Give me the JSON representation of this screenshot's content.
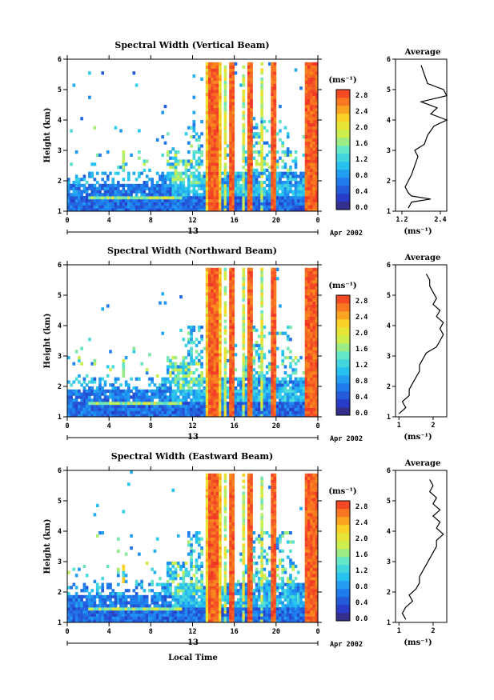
{
  "common": {
    "local_time_label": "Local Time",
    "date_label": "Apr 2002",
    "day_label": "13",
    "average_title": "Average",
    "height_label": "Height (km)",
    "unit_label": "(ms⁻¹)",
    "x_ticks": [
      "0",
      "4",
      "8",
      "12",
      "16",
      "20",
      "0"
    ],
    "y_ticks": [
      "1",
      "2",
      "3",
      "4",
      "5",
      "6"
    ],
    "colorbar_ticks": [
      "0.0",
      "0.4",
      "0.8",
      "1.2",
      "1.6",
      "2.0",
      "2.4",
      "2.8"
    ]
  },
  "chart_data": [
    {
      "type": "heatmap",
      "title": "Spectral Width (Vertical Beam)",
      "xlim": [
        0,
        24
      ],
      "ylim": [
        1,
        6
      ],
      "xlabel": "",
      "ylabel": "Height (km)",
      "colorbar": {
        "label": "(ms⁻¹)",
        "range": [
          0.0,
          3.0
        ],
        "ticks": [
          0.0,
          0.4,
          0.8,
          1.2,
          1.6,
          2.0,
          2.4,
          2.8
        ]
      },
      "avg_profile": {
        "title": "Average",
        "xlabel": "(ms⁻¹)",
        "xticks": [
          "1.2",
          "2.4"
        ],
        "xlim": [
          1.0,
          2.6
        ],
        "heights": [
          1.1,
          1.3,
          1.4,
          1.5,
          1.6,
          1.8,
          2.0,
          2.2,
          2.5,
          2.8,
          3.0,
          3.2,
          3.5,
          3.8,
          4.0,
          4.2,
          4.4,
          4.6,
          4.8,
          5.0,
          5.2,
          5.5,
          5.8
        ],
        "values": [
          1.4,
          1.5,
          2.1,
          1.5,
          1.4,
          1.3,
          1.4,
          1.5,
          1.6,
          1.7,
          1.6,
          1.9,
          2.0,
          2.2,
          2.6,
          2.1,
          2.3,
          1.8,
          2.6,
          2.5,
          2.0,
          1.9,
          1.8
        ]
      }
    },
    {
      "type": "heatmap",
      "title": "Spectral Width (Northward Beam)",
      "xlim": [
        0,
        24
      ],
      "ylim": [
        1,
        6
      ],
      "xlabel": "",
      "ylabel": "Height (km)",
      "colorbar": {
        "label": "(ms⁻¹)",
        "range": [
          0.0,
          3.0
        ],
        "ticks": [
          0.0,
          0.4,
          0.8,
          1.2,
          1.6,
          2.0,
          2.4,
          2.8
        ]
      },
      "avg_profile": {
        "title": "Average",
        "xlabel": "(ms⁻¹)",
        "xticks": [
          "1",
          "2"
        ],
        "xlim": [
          0.9,
          2.4
        ],
        "heights": [
          1.1,
          1.3,
          1.5,
          1.7,
          1.9,
          2.1,
          2.3,
          2.5,
          2.7,
          2.9,
          3.1,
          3.3,
          3.5,
          3.7,
          3.9,
          4.1,
          4.3,
          4.5,
          4.7,
          4.9,
          5.1,
          5.3,
          5.5,
          5.7
        ],
        "values": [
          1.0,
          1.2,
          1.1,
          1.3,
          1.3,
          1.4,
          1.5,
          1.6,
          1.6,
          1.7,
          1.8,
          2.1,
          2.2,
          2.3,
          2.2,
          2.3,
          2.1,
          2.2,
          2.0,
          2.1,
          2.0,
          1.9,
          1.9,
          1.8
        ]
      }
    },
    {
      "type": "heatmap",
      "title": "Spectral Width (Eastward Beam)",
      "xlim": [
        0,
        24
      ],
      "ylim": [
        1,
        6
      ],
      "xlabel": "Local Time",
      "ylabel": "Height (km)",
      "colorbar": {
        "label": "(ms⁻¹)",
        "range": [
          0.0,
          3.0
        ],
        "ticks": [
          0.0,
          0.4,
          0.8,
          1.2,
          1.6,
          2.0,
          2.4,
          2.8
        ]
      },
      "avg_profile": {
        "title": "Average",
        "xlabel": "(ms⁻¹)",
        "xticks": [
          "1",
          "2"
        ],
        "xlim": [
          0.9,
          2.4
        ],
        "heights": [
          1.1,
          1.3,
          1.5,
          1.7,
          1.9,
          2.1,
          2.3,
          2.5,
          2.7,
          2.9,
          3.1,
          3.3,
          3.5,
          3.7,
          3.9,
          4.1,
          4.3,
          4.5,
          4.7,
          4.9,
          5.1,
          5.3,
          5.5,
          5.7
        ],
        "values": [
          1.2,
          1.1,
          1.2,
          1.4,
          1.3,
          1.5,
          1.6,
          1.6,
          1.7,
          1.8,
          1.9,
          2.0,
          2.1,
          2.1,
          2.3,
          2.1,
          2.2,
          2.0,
          2.2,
          2.0,
          2.1,
          1.9,
          2.0,
          1.9
        ]
      }
    }
  ]
}
